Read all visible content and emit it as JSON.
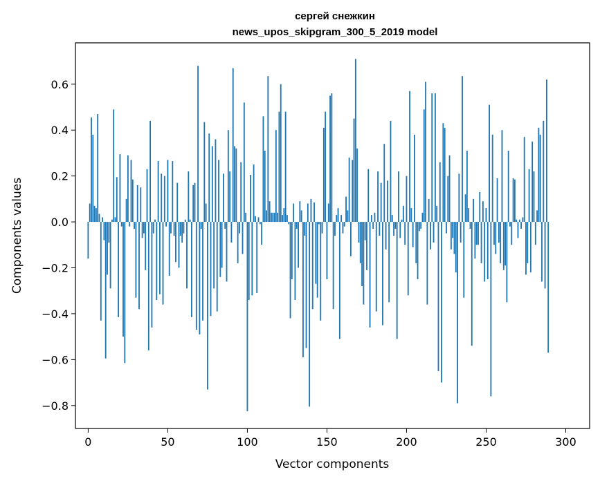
{
  "chart_data": {
    "type": "bar",
    "title_lines": [
      "сергей снежкин",
      "news_upos_skipgram_300_5_2019 model"
    ],
    "xlabel": "Vector components",
    "ylabel": "Components values",
    "xlim": [
      -8,
      315
    ],
    "ylim": [
      -0.9,
      0.78
    ],
    "xticks": [
      0,
      50,
      100,
      150,
      200,
      250,
      300
    ],
    "xtick_labels": [
      "0",
      "50",
      "100",
      "150",
      "200",
      "250",
      "300"
    ],
    "yticks": [
      -0.8,
      -0.6,
      -0.4,
      -0.2,
      0.0,
      0.2,
      0.4,
      0.6
    ],
    "ytick_labels": [
      "−0.8",
      "−0.6",
      "−0.4",
      "−0.2",
      "0.0",
      "0.2",
      "0.4",
      "0.6"
    ],
    "bar_color": "#1f77b4",
    "values": [
      -0.16,
      0.08,
      0.455,
      0.38,
      0.07,
      0.06,
      0.47,
      0.035,
      -0.43,
      0.02,
      -0.08,
      -0.595,
      -0.23,
      -0.09,
      -0.29,
      0.01,
      0.49,
      0.02,
      0.195,
      -0.415,
      0.295,
      -0.02,
      -0.5,
      -0.615,
      0.1,
      0.29,
      -0.02,
      0.27,
      0.185,
      -0.03,
      -0.33,
      0.16,
      -0.38,
      0.15,
      -0.07,
      -0.05,
      -0.21,
      0.23,
      -0.56,
      0.44,
      -0.46,
      -0.05,
      0.01,
      -0.34,
      0.265,
      -0.315,
      0.21,
      -0.36,
      0.2,
      -0.02,
      0.27,
      -0.235,
      -0.05,
      0.265,
      -0.06,
      -0.175,
      0.17,
      -0.2,
      -0.06,
      -0.09,
      -0.05,
      0.01,
      -0.29,
      0.22,
      0.01,
      -0.415,
      0.16,
      0.17,
      -0.47,
      0.68,
      -0.49,
      -0.03,
      -0.43,
      0.435,
      0.08,
      -0.73,
      0.385,
      -0.41,
      0.33,
      -0.29,
      0.36,
      -0.39,
      0.27,
      -0.24,
      -0.2,
      0.21,
      -0.03,
      -0.26,
      0.4,
      0.22,
      -0.09,
      0.67,
      0.33,
      0.32,
      -0.18,
      -0.05,
      0.26,
      -0.14,
      0.52,
      0.04,
      -0.825,
      -0.34,
      0.205,
      -0.32,
      0.25,
      0.025,
      -0.31,
      0.02,
      -0.01,
      -0.1,
      0.46,
      0.31,
      0.05,
      0.635,
      0.09,
      0.04,
      0.04,
      0.04,
      0.4,
      0.04,
      0.48,
      0.6,
      0.03,
      0.06,
      0.48,
      0.03,
      -0.01,
      -0.42,
      -0.25,
      0.08,
      -0.34,
      -0.03,
      -0.2,
      0.09,
      0.05,
      -0.59,
      -0.06,
      -0.55,
      0.08,
      -0.805,
      0.1,
      -0.38,
      0.085,
      -0.27,
      -0.33,
      -0.01,
      -0.43,
      -0.05,
      0.41,
      0.48,
      -0.25,
      0.08,
      0.55,
      0.56,
      -0.38,
      -0.06,
      0.03,
      0.06,
      -0.51,
      0.03,
      -0.05,
      -0.02,
      0.11,
      0.05,
      0.28,
      -0.15,
      0.27,
      0.45,
      0.71,
      0.32,
      -0.09,
      -0.18,
      -0.28,
      -0.36,
      -0.08,
      -0.21,
      0.23,
      -0.46,
      0.03,
      -0.03,
      0.04,
      -0.39,
      0.22,
      -0.06,
      0.17,
      -0.45,
      0.34,
      -0.12,
      0.18,
      -0.35,
      0.44,
      0.03,
      -0.06,
      -0.03,
      -0.51,
      0.22,
      -0.07,
      0.01,
      0.07,
      -0.1,
      0.2,
      -0.32,
      0.57,
      0.06,
      -0.11,
      0.38,
      -0.18,
      -0.25,
      -0.04,
      -0.03,
      0.04,
      0.49,
      0.61,
      -0.36,
      0.1,
      -0.12,
      0.56,
      -0.09,
      0.56,
      0.07,
      -0.65,
      0.26,
      -0.7,
      0.43,
      0.41,
      -0.05,
      0.2,
      0.29,
      -0.12,
      -0.07,
      -0.14,
      -0.22,
      -0.79,
      0.21,
      -0.09,
      0.635,
      -0.33,
      0.12,
      0.31,
      0.06,
      -0.03,
      -0.54,
      0.1,
      -0.16,
      -0.1,
      -0.1,
      0.13,
      -0.18,
      0.09,
      -0.26,
      0.06,
      -0.25,
      0.51,
      -0.76,
      0.38,
      -0.1,
      -0.14,
      0.19,
      -0.09,
      -0.18,
      0.4,
      -0.21,
      -0.19,
      -0.35,
      0.31,
      -0.02,
      -0.1,
      0.19,
      0.185,
      0.01,
      -0.07,
      0.01,
      -0.03,
      0.02,
      0.37,
      -0.23,
      -0.18,
      0.23,
      -0.22,
      0.35,
      0.22,
      -0.1,
      0.05,
      0.41,
      0.38,
      -0.26,
      0.44,
      -0.29,
      0.62,
      -0.57
    ],
    "legend": null,
    "grid": false
  }
}
